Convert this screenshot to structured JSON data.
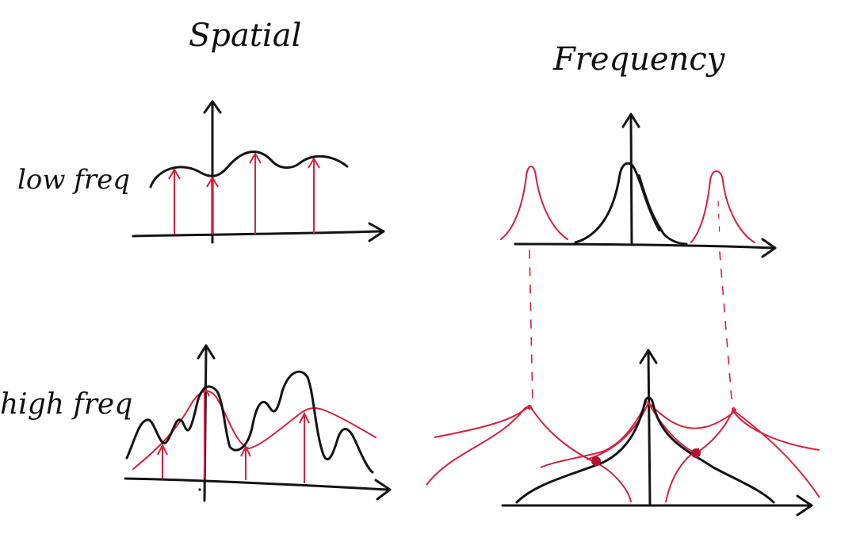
{
  "titles": {
    "spatial": "Spatial",
    "frequency": "Frequency"
  },
  "rows": {
    "low": "low freq",
    "high": "high freq"
  },
  "colors": {
    "ink": "#141414",
    "red": "#d4213f",
    "dot": "#b3122e"
  }
}
